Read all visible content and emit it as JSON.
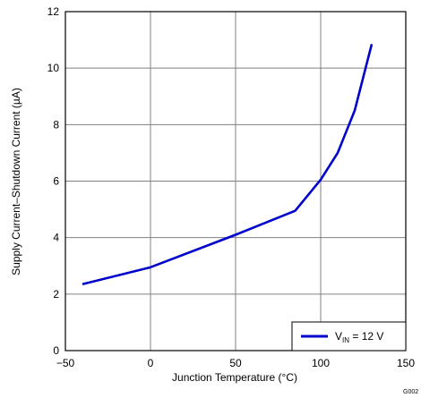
{
  "chart_data": {
    "type": "line",
    "xlabel": "Junction Temperature (°C)",
    "ylabel": "Supply Current–Shutdown Current (µA)",
    "xlim": [
      -50,
      150
    ],
    "ylim": [
      0,
      12
    ],
    "x_ticks": [
      -50,
      0,
      50,
      100,
      150
    ],
    "x_tick_labels": [
      "−50",
      "0",
      "50",
      "100",
      "150"
    ],
    "y_ticks": [
      0,
      2,
      4,
      6,
      8,
      10,
      12
    ],
    "y_tick_labels": [
      "0",
      "2",
      "4",
      "6",
      "8",
      "10",
      "12"
    ],
    "grid": true,
    "legend_position": "bottom-right",
    "series": [
      {
        "name": "V_IN = 12 V",
        "legend": {
          "main": "V",
          "sub": "IN",
          "rest": " = 12 V"
        },
        "color": "#0000cc",
        "x": [
          -40,
          0,
          50,
          85,
          100,
          110,
          120,
          130
        ],
        "y": [
          2.35,
          2.95,
          4.1,
          4.95,
          6.05,
          7.0,
          8.5,
          10.85
        ]
      }
    ]
  },
  "figure_code": "G002"
}
